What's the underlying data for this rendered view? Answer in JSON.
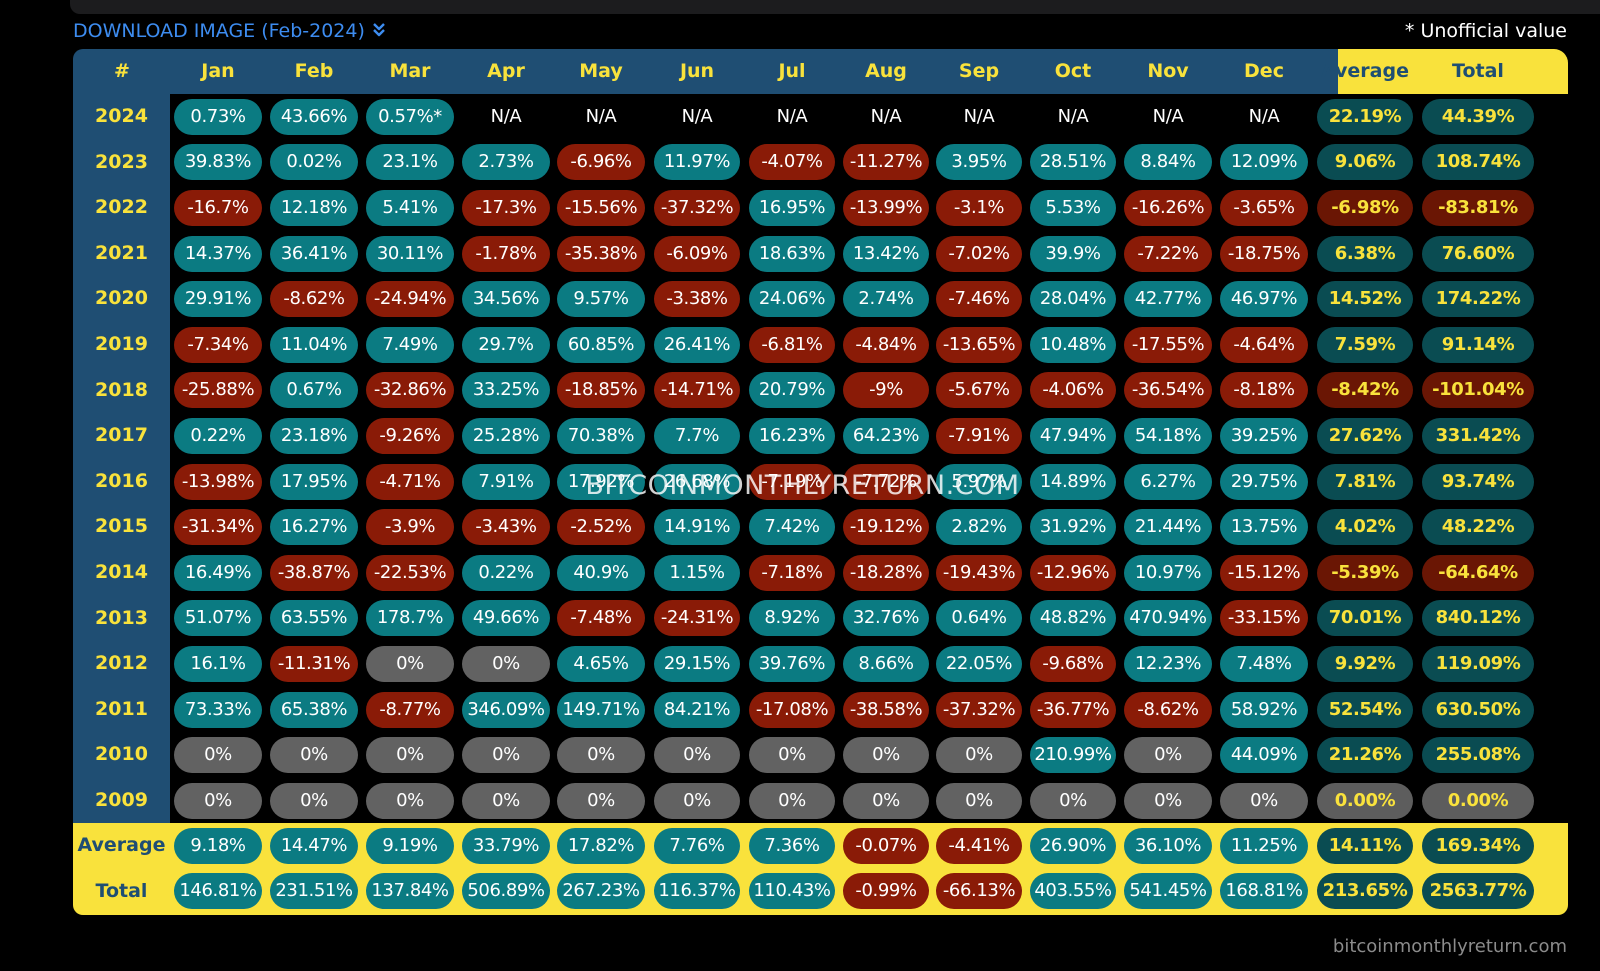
{
  "download_label": "DOWNLOAD IMAGE (Feb-2024)",
  "unofficial_note": "* Unofficial value",
  "watermark": "BITCOINMONTHLYRETURN.COM",
  "footer_site": "bitcoinmonthlyreturn.com",
  "colors": {
    "header_blue": "#1f4e73",
    "accent_yellow": "#f9e23c",
    "positive": "#0b7b82",
    "negative": "#8a1b07",
    "zero": "#626262"
  },
  "columns": [
    "#",
    "Jan",
    "Feb",
    "Mar",
    "Apr",
    "May",
    "Jun",
    "Jul",
    "Aug",
    "Sep",
    "Oct",
    "Nov",
    "Dec",
    "Average",
    "Total"
  ],
  "rows": [
    {
      "year": "2024",
      "values": [
        "0.73%",
        "43.66%",
        "0.57%*",
        "N/A",
        "N/A",
        "N/A",
        "N/A",
        "N/A",
        "N/A",
        "N/A",
        "N/A",
        "N/A",
        "22.19%",
        "44.39%"
      ]
    },
    {
      "year": "2023",
      "values": [
        "39.83%",
        "0.02%",
        "23.1%",
        "2.73%",
        "-6.96%",
        "11.97%",
        "-4.07%",
        "-11.27%",
        "3.95%",
        "28.51%",
        "8.84%",
        "12.09%",
        "9.06%",
        "108.74%"
      ]
    },
    {
      "year": "2022",
      "values": [
        "-16.7%",
        "12.18%",
        "5.41%",
        "-17.3%",
        "-15.56%",
        "-37.32%",
        "16.95%",
        "-13.99%",
        "-3.1%",
        "5.53%",
        "-16.26%",
        "-3.65%",
        "-6.98%",
        "-83.81%"
      ]
    },
    {
      "year": "2021",
      "values": [
        "14.37%",
        "36.41%",
        "30.11%",
        "-1.78%",
        "-35.38%",
        "-6.09%",
        "18.63%",
        "13.42%",
        "-7.02%",
        "39.9%",
        "-7.22%",
        "-18.75%",
        "6.38%",
        "76.60%"
      ]
    },
    {
      "year": "2020",
      "values": [
        "29.91%",
        "-8.62%",
        "-24.94%",
        "34.56%",
        "9.57%",
        "-3.38%",
        "24.06%",
        "2.74%",
        "-7.46%",
        "28.04%",
        "42.77%",
        "46.97%",
        "14.52%",
        "174.22%"
      ]
    },
    {
      "year": "2019",
      "values": [
        "-7.34%",
        "11.04%",
        "7.49%",
        "29.7%",
        "60.85%",
        "26.41%",
        "-6.81%",
        "-4.84%",
        "-13.65%",
        "10.48%",
        "-17.55%",
        "-4.64%",
        "7.59%",
        "91.14%"
      ]
    },
    {
      "year": "2018",
      "values": [
        "-25.88%",
        "0.67%",
        "-32.86%",
        "33.25%",
        "-18.85%",
        "-14.71%",
        "20.79%",
        "-9%",
        "-5.67%",
        "-4.06%",
        "-36.54%",
        "-8.18%",
        "-8.42%",
        "-101.04%"
      ]
    },
    {
      "year": "2017",
      "values": [
        "0.22%",
        "23.18%",
        "-9.26%",
        "25.28%",
        "70.38%",
        "7.7%",
        "16.23%",
        "64.23%",
        "-7.91%",
        "47.94%",
        "54.18%",
        "39.25%",
        "27.62%",
        "331.42%"
      ]
    },
    {
      "year": "2016",
      "values": [
        "-13.98%",
        "17.95%",
        "-4.71%",
        "7.91%",
        "17.92%",
        "26.68%",
        "-7.19%",
        "-7.72%",
        "5.97%",
        "14.89%",
        "6.27%",
        "29.75%",
        "7.81%",
        "93.74%"
      ]
    },
    {
      "year": "2015",
      "values": [
        "-31.34%",
        "16.27%",
        "-3.9%",
        "-3.43%",
        "-2.52%",
        "14.91%",
        "7.42%",
        "-19.12%",
        "2.82%",
        "31.92%",
        "21.44%",
        "13.75%",
        "4.02%",
        "48.22%"
      ]
    },
    {
      "year": "2014",
      "values": [
        "16.49%",
        "-38.87%",
        "-22.53%",
        "0.22%",
        "40.9%",
        "1.15%",
        "-7.18%",
        "-18.28%",
        "-19.43%",
        "-12.96%",
        "10.97%",
        "-15.12%",
        "-5.39%",
        "-64.64%"
      ]
    },
    {
      "year": "2013",
      "values": [
        "51.07%",
        "63.55%",
        "178.7%",
        "49.66%",
        "-7.48%",
        "-24.31%",
        "8.92%",
        "32.76%",
        "0.64%",
        "48.82%",
        "470.94%",
        "-33.15%",
        "70.01%",
        "840.12%"
      ]
    },
    {
      "year": "2012",
      "values": [
        "16.1%",
        "-11.31%",
        "0%",
        "0%",
        "4.65%",
        "29.15%",
        "39.76%",
        "8.66%",
        "22.05%",
        "-9.68%",
        "12.23%",
        "7.48%",
        "9.92%",
        "119.09%"
      ]
    },
    {
      "year": "2011",
      "values": [
        "73.33%",
        "65.38%",
        "-8.77%",
        "346.09%",
        "149.71%",
        "84.21%",
        "-17.08%",
        "-38.58%",
        "-37.32%",
        "-36.77%",
        "-8.62%",
        "58.92%",
        "52.54%",
        "630.50%"
      ]
    },
    {
      "year": "2010",
      "values": [
        "0%",
        "0%",
        "0%",
        "0%",
        "0%",
        "0%",
        "0%",
        "0%",
        "0%",
        "210.99%",
        "0%",
        "44.09%",
        "21.26%",
        "255.08%"
      ]
    },
    {
      "year": "2009",
      "values": [
        "0%",
        "0%",
        "0%",
        "0%",
        "0%",
        "0%",
        "0%",
        "0%",
        "0%",
        "0%",
        "0%",
        "0%",
        "0.00%",
        "0.00%"
      ]
    }
  ],
  "footer_rows": [
    {
      "label": "Average",
      "values": [
        "9.18%",
        "14.47%",
        "9.19%",
        "33.79%",
        "17.82%",
        "7.76%",
        "7.36%",
        "-0.07%",
        "-4.41%",
        "26.90%",
        "36.10%",
        "11.25%",
        "14.11%",
        "169.34%"
      ]
    },
    {
      "label": "Total",
      "values": [
        "146.81%",
        "231.51%",
        "137.84%",
        "506.89%",
        "267.23%",
        "116.37%",
        "110.43%",
        "-0.99%",
        "-66.13%",
        "403.55%",
        "541.45%",
        "168.81%",
        "213.65%",
        "2563.77%"
      ]
    }
  ]
}
